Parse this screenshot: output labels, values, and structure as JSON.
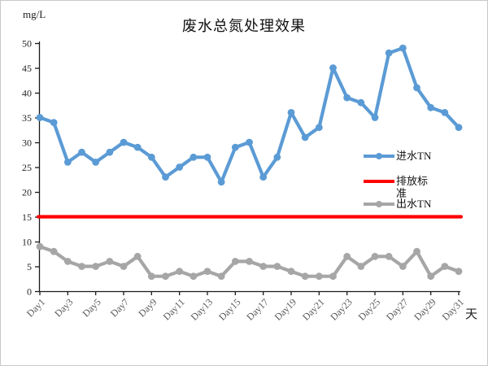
{
  "chart": {
    "title": "废水总氮处理效果",
    "y_unit": "mg/L",
    "x_unit": "天"
  },
  "chart_data": {
    "type": "line",
    "title": "废水总氮处理效果",
    "ylabel": "mg/L",
    "xlabel": "天",
    "ylim": [
      0,
      50
    ],
    "yticks": [
      0,
      5,
      10,
      15,
      20,
      25,
      30,
      35,
      40,
      45,
      50
    ],
    "grid": false,
    "legend_position": "right-middle",
    "categories": [
      "Day1",
      "Day2",
      "Day3",
      "Day4",
      "Day5",
      "Day6",
      "Day7",
      "Day8",
      "Day9",
      "Day10",
      "Day11",
      "Day12",
      "Day13",
      "Day14",
      "Day15",
      "Day16",
      "Day17",
      "Day18",
      "Day19",
      "Day20",
      "Day21",
      "Day22",
      "Day23",
      "Day24",
      "Day25",
      "Day26",
      "Day27",
      "Day28",
      "Day29",
      "Day30",
      "Day31"
    ],
    "x_label_every": 2,
    "series": [
      {
        "name": "进水TN",
        "type": "line-marker",
        "color": "#5B9BD5",
        "values": [
          35,
          34,
          26,
          28,
          26,
          28,
          30,
          29,
          27,
          23,
          25,
          27,
          27,
          22,
          29,
          30,
          23,
          27,
          36,
          31,
          33,
          45,
          39,
          38,
          35,
          48,
          49,
          41,
          37,
          36,
          33
        ]
      },
      {
        "name": "排放标准",
        "type": "line",
        "color": "#FF0000",
        "constant": 15
      },
      {
        "name": "出水TN",
        "type": "line-marker",
        "color": "#A6A6A6",
        "values": [
          9,
          8,
          6,
          5,
          5,
          6,
          5,
          7,
          3,
          3,
          4,
          3,
          4,
          3,
          6,
          6,
          5,
          5,
          4,
          3,
          3,
          3,
          7,
          5,
          7,
          7,
          5,
          8,
          3,
          5,
          4
        ]
      }
    ]
  },
  "legend": {
    "items": [
      {
        "label": "进水TN",
        "color": "#5B9BD5",
        "marker": true
      },
      {
        "label": "排放标准",
        "color": "#FF0000",
        "marker": false
      },
      {
        "label": "出水TN",
        "color": "#A6A6A6",
        "marker": true
      }
    ]
  }
}
